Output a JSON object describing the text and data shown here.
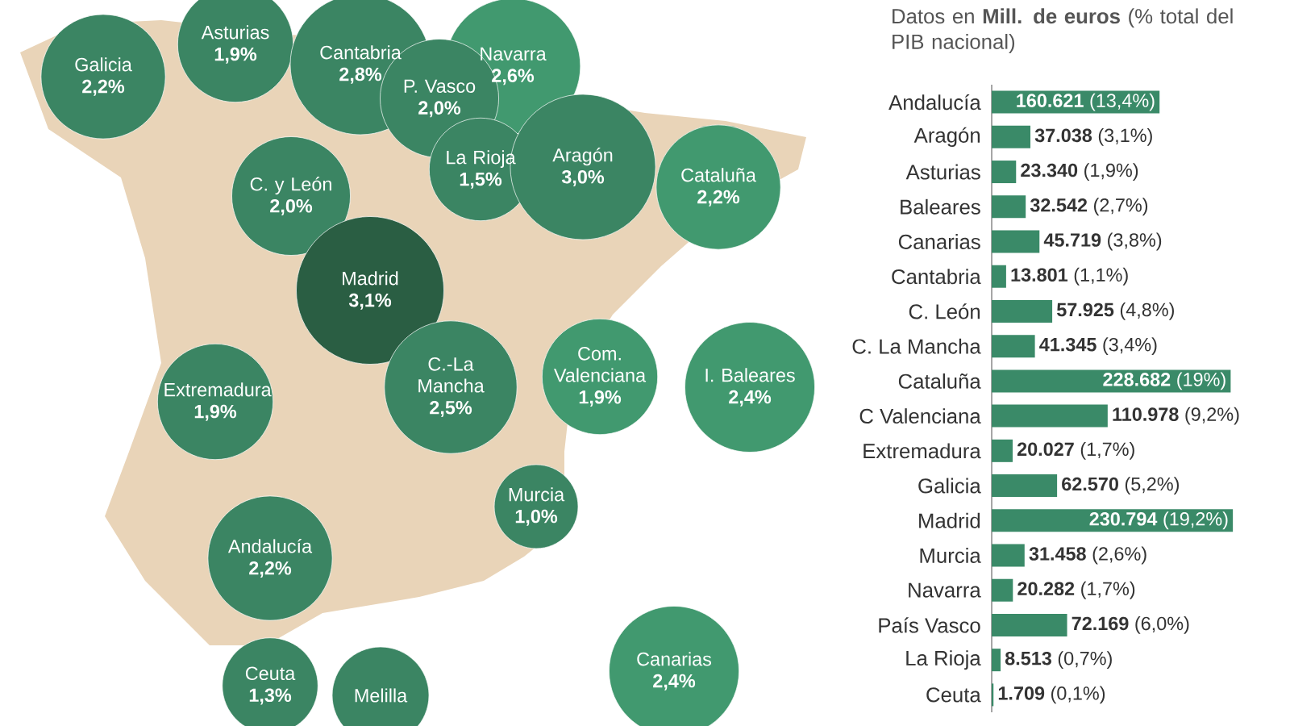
{
  "chart_data": [
    {
      "type": "other",
      "categories": [
        "Galicia",
        "Asturias",
        "Cantabria",
        "Navarra",
        "P. Vasco",
        "La Rioja",
        "Aragón",
        "Cataluña",
        "C. y León",
        "Madrid",
        "Extremadura",
        "C.-La Mancha",
        "Com. Valenciana",
        "I. Baleares",
        "Murcia",
        "Andalucía",
        "Ceuta",
        "Melilla",
        "Canarias"
      ],
      "values": [
        2.2,
        1.9,
        2.8,
        2.6,
        2.0,
        1.5,
        3.0,
        2.2,
        2.0,
        3.1,
        1.9,
        2.5,
        1.9,
        2.4,
        1.0,
        2.2,
        1.3,
        null,
        2.4
      ],
      "value_labels": [
        "2,2%",
        "1,9%",
        "2,8%",
        "2,6%",
        "2,0%",
        "1,5%",
        "3,0%",
        "2,2%",
        "2,0%",
        "3,1%",
        "1,9%",
        "2,5%",
        "1,9%",
        "2,4%",
        "1,0%",
        "2,2%",
        "1,3%",
        null,
        "2,4%"
      ],
      "colors": [
        "#3b8563",
        "#3b8563",
        "#3b8563",
        "#41996f",
        "#3b8563",
        "#3b8563",
        "#3b8563",
        "#41996f",
        "#3b8563",
        "#2a5e43",
        "#3b8563",
        "#3b8563",
        "#41996f",
        "#41996f",
        "#3b8563",
        "#3b8563",
        "#3b8563",
        "#3b8563",
        "#41996f"
      ]
    },
    {
      "type": "bar",
      "orientation": "horizontal",
      "title": "Datos en **Mill. de euros** (% total del PIB nacional)",
      "categories": [
        "Andalucía",
        "Aragón",
        "Asturias",
        "Baleares",
        "Canarias",
        "Cantabria",
        "C. León",
        "C. La Mancha",
        "Cataluña",
        "C Valenciana",
        "Extremadura",
        "Galicia",
        "Madrid",
        "Murcia",
        "Navarra",
        "País Vasco",
        "La Rioja",
        "Ceuta"
      ],
      "values": [
        160621,
        37038,
        23340,
        32542,
        45719,
        13801,
        57925,
        41345,
        228682,
        110978,
        20027,
        62570,
        230794,
        31458,
        20282,
        72169,
        8513,
        1709
      ],
      "value_labels": [
        "**160.621** (13,4%)",
        "**37.038** (3,1%)",
        "**23.340** (1,9%)",
        "**32.542** (2,7%)",
        "**45.719** (3,8%)",
        "**13.801** (1,1%)",
        "**57.925** (4,8%)",
        "**41.345** (3,4%)",
        "**228.682** (19%)",
        "**110.978** (9,2%)",
        "**20.027** (1,7%)",
        "**62.570** (5,2%)",
        "**230.794** (19,2%)",
        "**31.458** (2,6%)",
        "**20.282** (1,7%)",
        "**72.169** (6,0%)",
        "**8.513** (0,7%)",
        "**1.709** (0,1%)"
      ],
      "color": "#3a8a68"
    }
  ]
}
